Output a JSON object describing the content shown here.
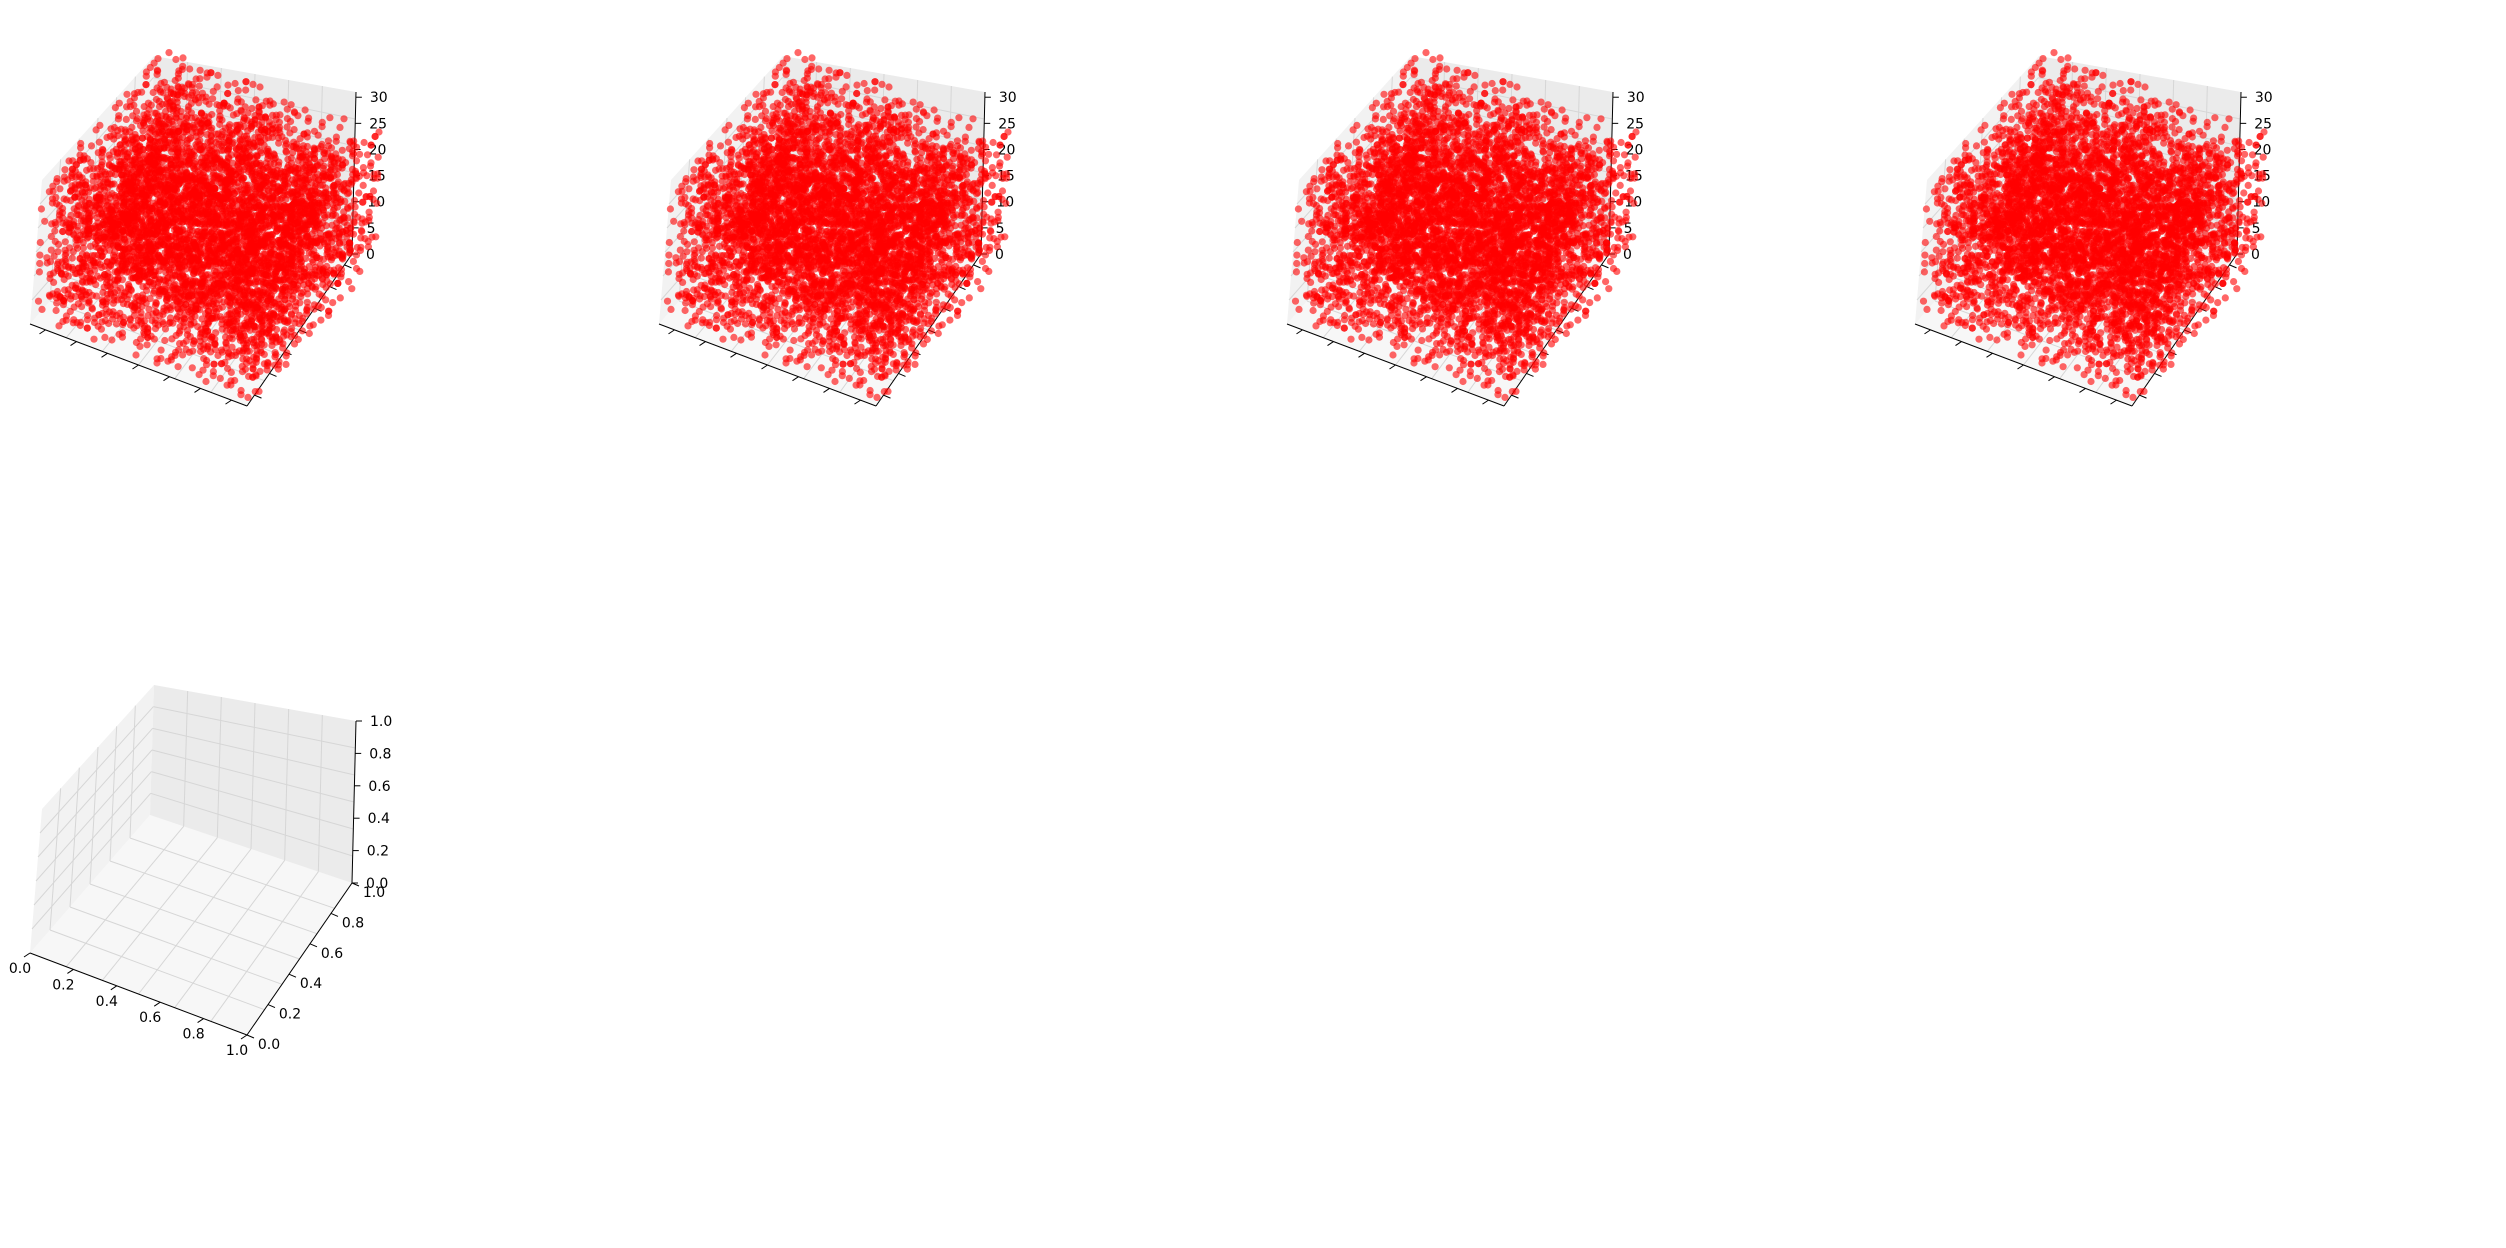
{
  "figure": {
    "background": "#ffffff"
  },
  "style": {
    "point_color": "#ff0000",
    "point_alpha": 0.6,
    "pane_colors": [
      "#f2f2f2",
      "#ebebeb",
      "#f7f7f7"
    ],
    "grid_color": "#d6d6d6",
    "axis_color": "#000000"
  },
  "chart_data": [
    {
      "type": "scatter",
      "projection": "3d",
      "xlim": [
        0,
        31
      ],
      "ylim": [
        0,
        31
      ],
      "zlim": [
        0,
        31
      ],
      "x_ticks": [],
      "y_ticks": [],
      "z_ticks": [
        "0",
        "5",
        "10",
        "15",
        "20",
        "25",
        "30"
      ],
      "z_tick_values": [
        0,
        5,
        10,
        15,
        20,
        25,
        30
      ],
      "x_tick_marks": 7,
      "y_tick_marks": 7,
      "grid": true,
      "data": "dense random integer lattice points filling 0-31 cube (approx. 6000 points)"
    },
    {
      "type": "scatter",
      "projection": "3d",
      "xlim": [
        0,
        31
      ],
      "ylim": [
        0,
        31
      ],
      "zlim": [
        0,
        31
      ],
      "x_ticks": [],
      "y_ticks": [],
      "z_ticks": [
        "0",
        "5",
        "10",
        "15",
        "20",
        "25",
        "30"
      ],
      "z_tick_values": [
        0,
        5,
        10,
        15,
        20,
        25,
        30
      ],
      "x_tick_marks": 7,
      "y_tick_marks": 7,
      "grid": true,
      "data": "dense random integer lattice points filling 0-31 cube (approx. 6000 points)"
    },
    {
      "type": "scatter",
      "projection": "3d",
      "xlim": [
        0,
        31
      ],
      "ylim": [
        0,
        31
      ],
      "zlim": [
        0,
        31
      ],
      "x_ticks": [],
      "y_ticks": [],
      "z_ticks": [
        "0",
        "5",
        "10",
        "15",
        "20",
        "25",
        "30"
      ],
      "z_tick_values": [
        0,
        5,
        10,
        15,
        20,
        25,
        30
      ],
      "x_tick_marks": 7,
      "y_tick_marks": 7,
      "grid": true,
      "data": "dense random integer lattice points filling 0-31 cube (approx. 6000 points)"
    },
    {
      "type": "scatter",
      "projection": "3d",
      "xlim": [
        0,
        31
      ],
      "ylim": [
        0,
        31
      ],
      "zlim": [
        0,
        31
      ],
      "x_ticks": [],
      "y_ticks": [],
      "z_ticks": [
        "0",
        "5",
        "10",
        "15",
        "20",
        "25",
        "30"
      ],
      "z_tick_values": [
        0,
        5,
        10,
        15,
        20,
        25,
        30
      ],
      "x_tick_marks": 7,
      "y_tick_marks": 7,
      "grid": true,
      "data": "dense random integer lattice points filling 0-31 cube (approx. 6000 points)"
    },
    {
      "type": "scatter",
      "projection": "3d",
      "xlim": [
        0,
        1
      ],
      "ylim": [
        0,
        1
      ],
      "zlim": [
        0,
        1
      ],
      "x_ticks": [
        "0.0",
        "0.2",
        "0.4",
        "0.6",
        "0.8",
        "1.0"
      ],
      "y_ticks": [
        "0.0",
        "0.2",
        "0.4",
        "0.6",
        "0.8",
        "1.0"
      ],
      "z_ticks": [
        "0.0",
        "0.2",
        "0.4",
        "0.6",
        "0.8",
        "1.0"
      ],
      "x_tick_values": [
        0,
        0.2,
        0.4,
        0.6,
        0.8,
        1.0
      ],
      "y_tick_values": [
        0,
        0.2,
        0.4,
        0.6,
        0.8,
        1.0
      ],
      "z_tick_values": [
        0,
        0.2,
        0.4,
        0.6,
        0.8,
        1.0
      ],
      "grid": true,
      "data": "empty"
    }
  ]
}
